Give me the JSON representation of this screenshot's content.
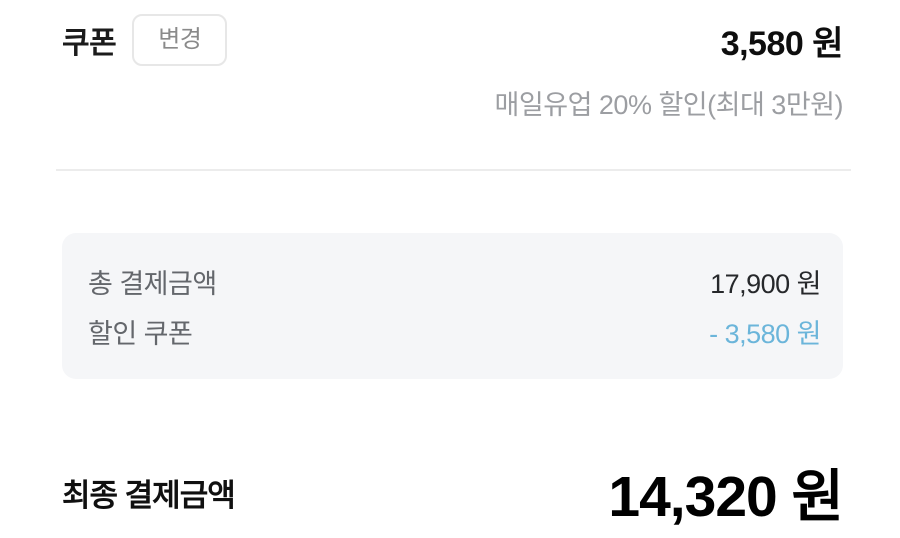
{
  "coupon": {
    "title": "쿠폰",
    "change_button_label": "변경",
    "amount": "3,580 원",
    "description": "매일유업 20% 할인(최대 3만원)"
  },
  "summary": {
    "rows": [
      {
        "label": "총 결제금액",
        "value": "17,900 원",
        "highlight": false
      },
      {
        "label": "할인 쿠폰",
        "value": "- 3,580 원",
        "highlight": true
      }
    ]
  },
  "final": {
    "label": "최종 결제금액",
    "value": "14,320 원"
  },
  "colors": {
    "discount_blue": "#6bb5da",
    "box_background": "#f5f6f8",
    "divider": "#ececec",
    "muted_text": "#9c9ea2",
    "label_text": "#64676c"
  }
}
